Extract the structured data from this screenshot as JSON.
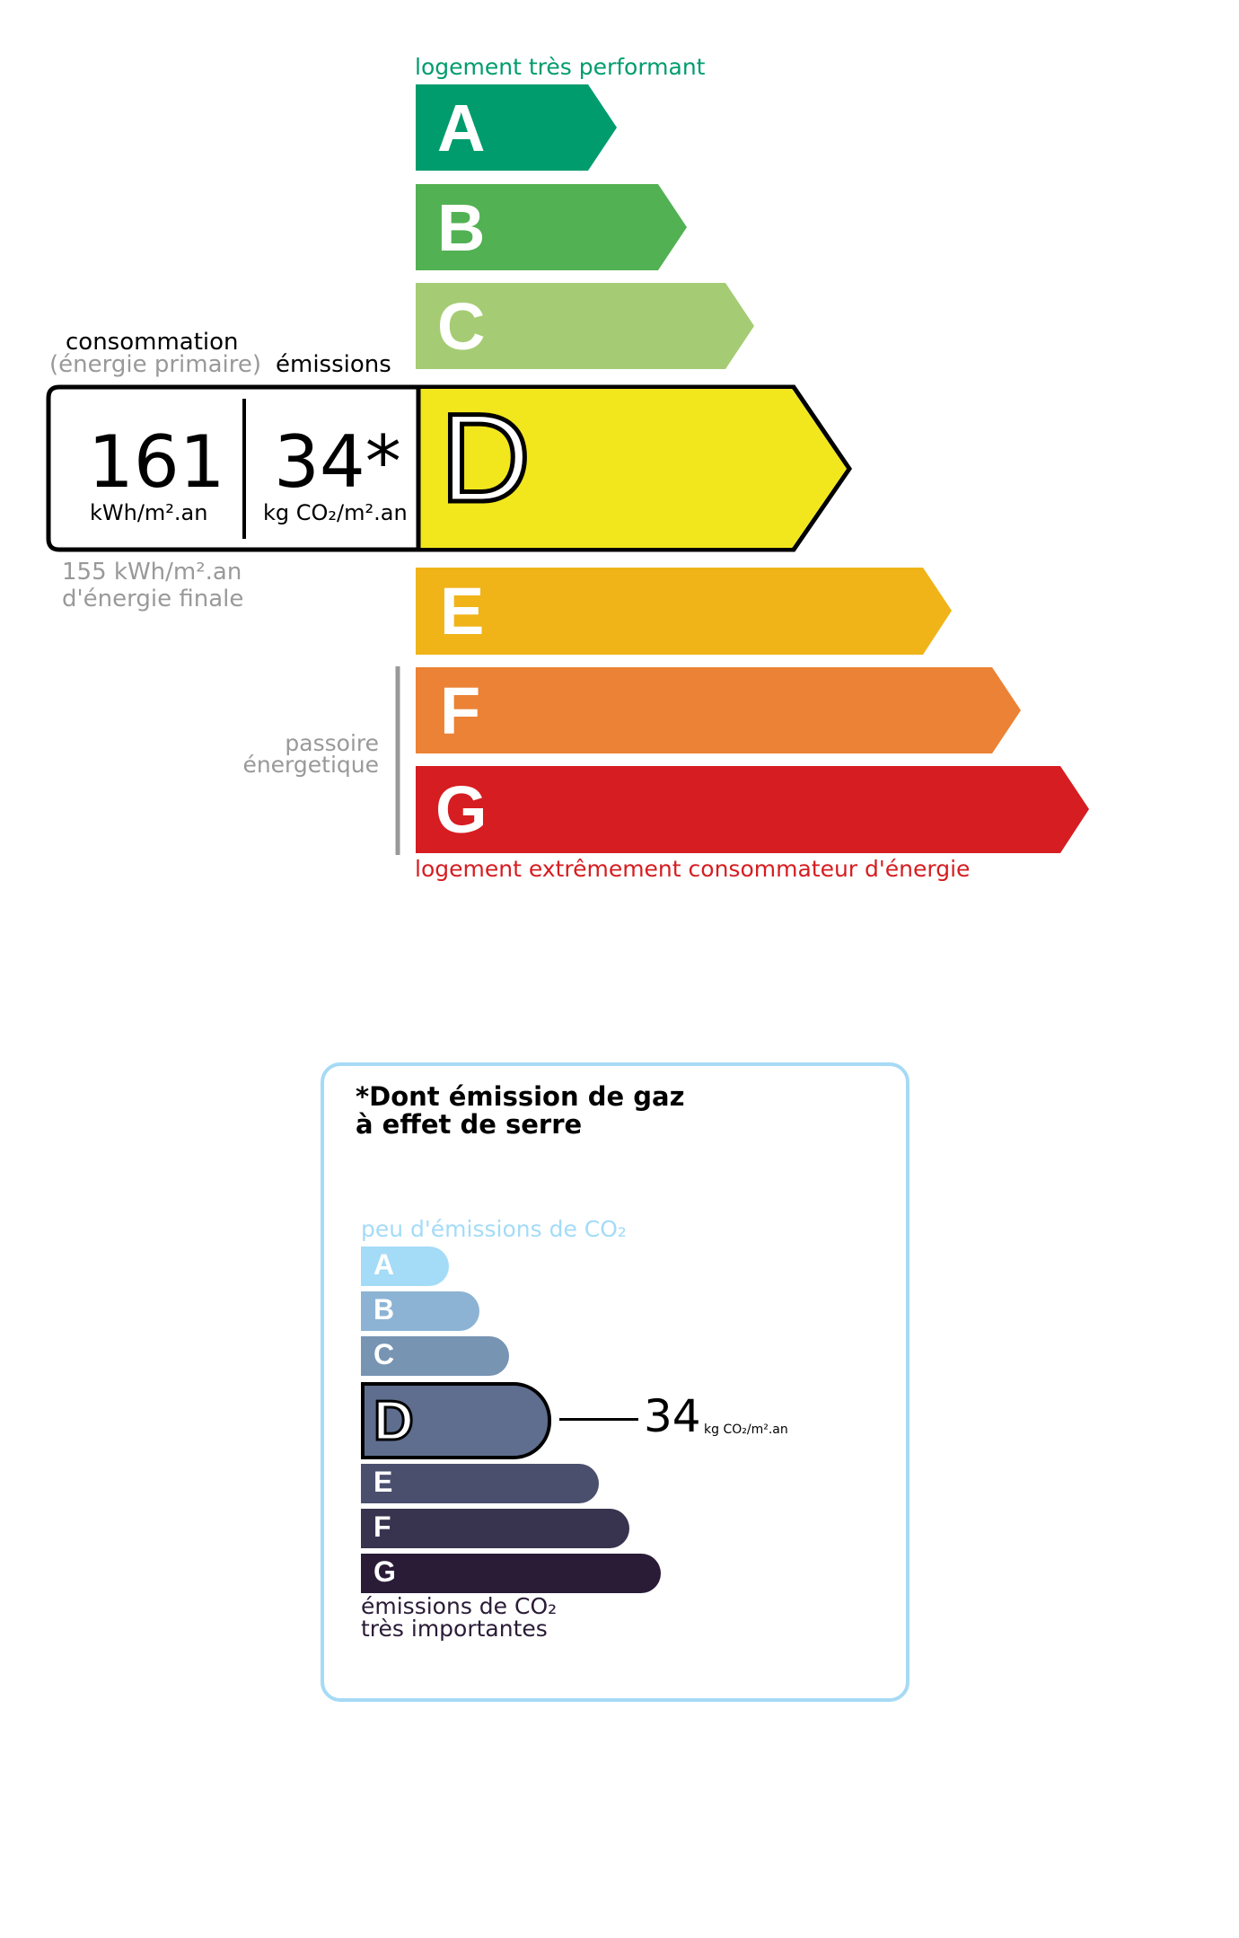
{
  "energy": {
    "top_label": "logement très performant",
    "bottom_label": "logement extrêmement consommateur d'énergie",
    "classes": [
      {
        "letter": "A",
        "color": "#009c6d"
      },
      {
        "letter": "B",
        "color": "#52b153"
      },
      {
        "letter": "C",
        "color": "#a5cc74"
      },
      {
        "letter": "D",
        "color": "#f2e61d"
      },
      {
        "letter": "E",
        "color": "#f0b419"
      },
      {
        "letter": "F",
        "color": "#eb8235"
      },
      {
        "letter": "G",
        "color": "#d61d21"
      }
    ],
    "current_class": "D",
    "consumption_label": "consommation",
    "consumption_sublabel": "(énergie primaire)",
    "emissions_label": "émissions",
    "consumption_value": "161",
    "consumption_unit": "kWh/m².an",
    "emissions_value": "34*",
    "emissions_unit": "kg CO₂/m².an",
    "final_energy_line1": "155 kWh/m².an",
    "final_energy_line2": "d'énergie finale",
    "passoire_line1": "passoire",
    "passoire_line2": "énergetique"
  },
  "ghg": {
    "title_line1": "*Dont émission de gaz",
    "title_line2": "à effet de serre",
    "top_label": "peu d'émissions de CO₂",
    "bottom_line1": "émissions de CO₂",
    "bottom_line2": "très importantes",
    "classes": [
      {
        "letter": "A",
        "color": "#a4dbf7"
      },
      {
        "letter": "B",
        "color": "#8cb3d4"
      },
      {
        "letter": "C",
        "color": "#7794b3"
      },
      {
        "letter": "D",
        "color": "#5f6e8e"
      },
      {
        "letter": "E",
        "color": "#4b4f6e"
      },
      {
        "letter": "F",
        "color": "#38334e"
      },
      {
        "letter": "G",
        "color": "#2a1b37"
      }
    ],
    "current_class": "D",
    "value": "34",
    "unit": "kg CO₂/m².an",
    "border_color": "#a6daf5"
  }
}
